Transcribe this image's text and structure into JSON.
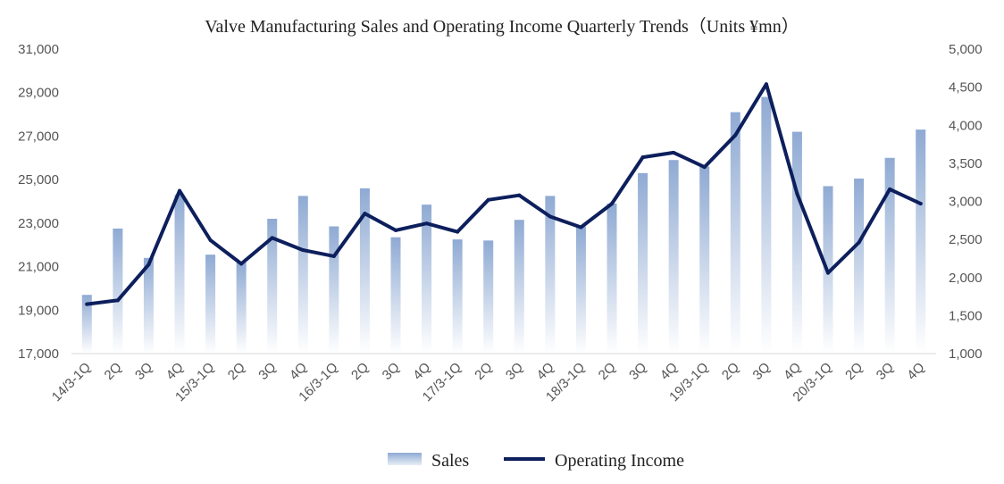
{
  "chart_data": {
    "type": "bar",
    "title": "Valve Manufacturing Sales and Operating Income Quarterly Trends（Units ¥mn）",
    "categories": [
      "14/3-1Q",
      "2Q",
      "3Q",
      "4Q",
      "15/3-1Q",
      "2Q",
      "3Q",
      "4Q",
      "16/3-1Q",
      "2Q",
      "3Q",
      "4Q",
      "17/3-1Q",
      "2Q",
      "3Q",
      "4Q",
      "18/3-1Q",
      "2Q",
      "3Q",
      "4Q",
      "19/3-1Q",
      "2Q",
      "3Q",
      "4Q",
      "20/3-1Q",
      "2Q",
      "3Q",
      "4Q"
    ],
    "series": [
      {
        "name": "Sales",
        "type": "bar",
        "axis": "left",
        "color": "#8FAAD3",
        "values": [
          19700,
          22750,
          21400,
          24300,
          21550,
          21200,
          23200,
          24250,
          22850,
          24600,
          22350,
          23850,
          22250,
          22200,
          23150,
          24250,
          22850,
          23900,
          25300,
          25900,
          25600,
          28100,
          28800,
          27200,
          24700,
          25050,
          26000,
          27300
        ]
      },
      {
        "name": "Operating Income",
        "type": "line",
        "axis": "right",
        "color": "#0D1F5C",
        "values": [
          1650,
          1700,
          2170,
          3140,
          2490,
          2180,
          2520,
          2360,
          2280,
          2840,
          2620,
          2710,
          2600,
          3020,
          3080,
          2800,
          2660,
          2970,
          3580,
          3640,
          3450,
          3870,
          4540,
          3100,
          2060,
          2460,
          3160,
          2970
        ]
      }
    ],
    "y_left": {
      "min": 17000,
      "max": 31000,
      "ticks": [
        "17,000",
        "19,000",
        "21,000",
        "23,000",
        "25,000",
        "27,000",
        "29,000",
        "31,000"
      ]
    },
    "y_right": {
      "min": 1000,
      "max": 5000,
      "ticks": [
        "1,000",
        "1,500",
        "2,000",
        "2,500",
        "3,000",
        "3,500",
        "4,000",
        "4,500",
        "5,000"
      ]
    },
    "legend": {
      "position": "bottom",
      "items": [
        "Sales",
        "Operating Income"
      ]
    },
    "grid": false
  }
}
